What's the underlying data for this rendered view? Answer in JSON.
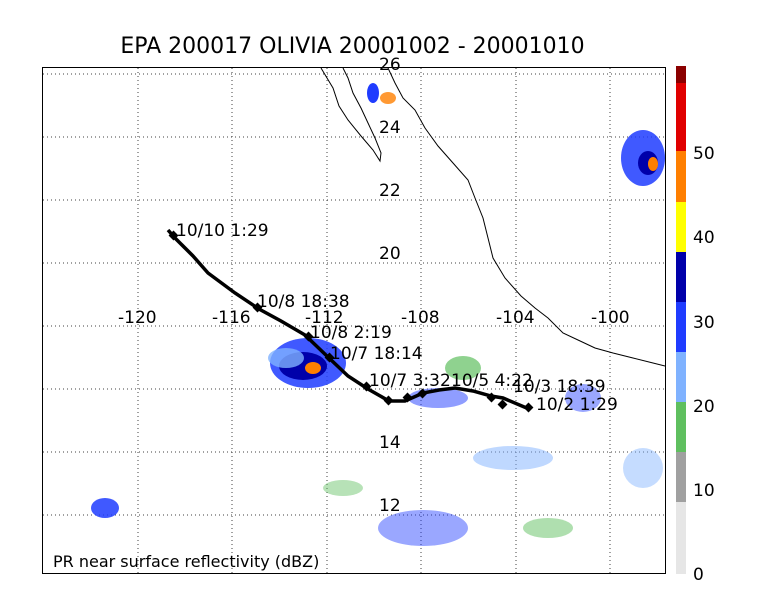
{
  "title": "EPA 200017 OLIVIA 20001002 - 20001010",
  "footer_label": "PR near surface reflectivity (dBZ)",
  "lat_labels": [
    "26",
    "24",
    "22",
    "20",
    "14",
    "12"
  ],
  "lon_labels": [
    "-120",
    "-116",
    "-112",
    "-108",
    "-104",
    "-100"
  ],
  "track_labels": [
    "10/10 1:29",
    "10/8 18:38",
    "10/8 2:19",
    "10/7 18:14",
    "10/7 3:32",
    "10/5 4:22",
    "10/3 18:39",
    "10/2 1:29"
  ],
  "colorbar": {
    "tick_labels": [
      "50",
      "40",
      "30",
      "20",
      "10",
      "0"
    ],
    "colors": {
      "dark_red": "#8b0000",
      "red": "#e00000",
      "orange": "#ff7f00",
      "yellow": "#ffff00",
      "dark_blue": "#0000aa",
      "blue": "#1f3cff",
      "light_blue": "#7fb2ff",
      "green": "#5fbf5f",
      "gray": "#a0a0a0",
      "light_gray": "#e6e6e6"
    }
  },
  "colors": {
    "track": "#000000",
    "coast": "#000000",
    "grid": "#404040"
  }
}
